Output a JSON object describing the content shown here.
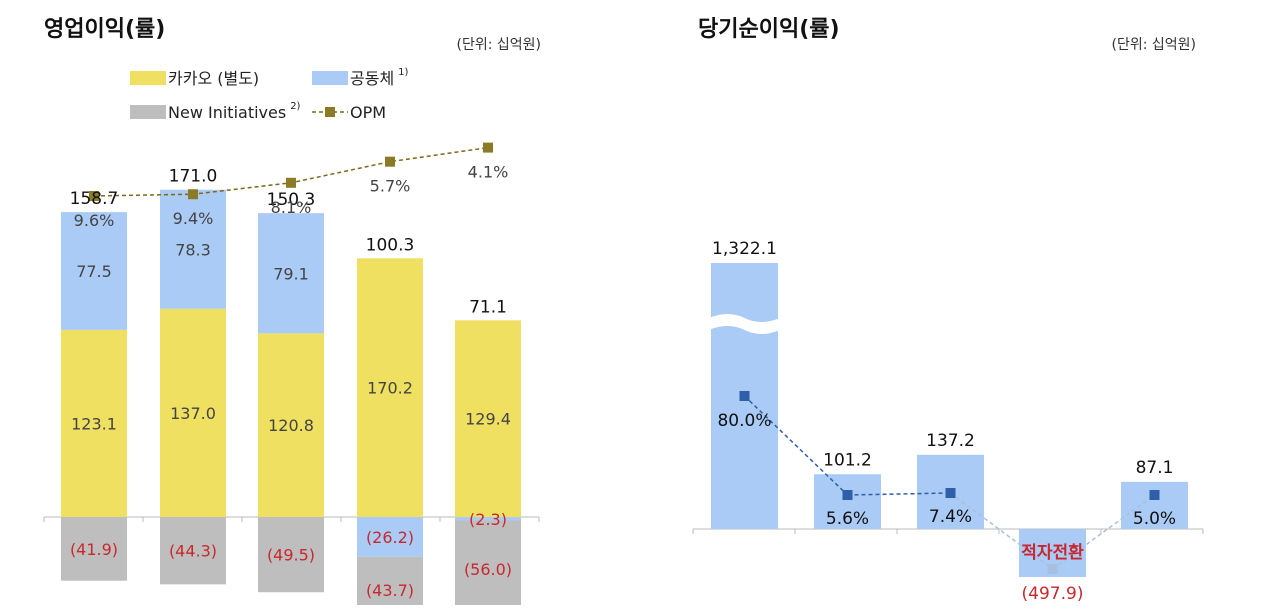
{
  "colors": {
    "kakao": "#EFE062",
    "community": "#A9CBF6",
    "new_init": "#BEBEBE",
    "opm_line": "#7A6A18",
    "opm_marker": "#8C7B26",
    "np_bar": "#A9CBF6",
    "np_line": "#2F5FA8",
    "neg_text": "#C8282D",
    "dark_text": "#111111",
    "mid_text": "#444444",
    "axis": "#BBBBBB"
  },
  "chart_data": [
    {
      "type": "bar",
      "subtype": "stacked-bar-with-line",
      "title": "영업이익(률)",
      "unit_note": "(단위: 십억원)",
      "legend": [
        {
          "label": "카카오 (별도)",
          "sup": "",
          "swatch": "kakao"
        },
        {
          "label": "공동체",
          "sup": "1)",
          "swatch": "community"
        },
        {
          "label": "New Initiatives",
          "sup": "2)",
          "swatch": "new_init"
        },
        {
          "label": "OPM",
          "sup": "",
          "swatch": "line"
        }
      ],
      "n_categories": 5,
      "series": [
        {
          "name": "카카오 (별도)",
          "values": [
            123.1,
            137.0,
            120.8,
            170.2,
            129.4
          ],
          "labels": [
            "123.1",
            "137.0",
            "120.8",
            "170.2",
            "129.4"
          ]
        },
        {
          "name": "공동체",
          "values": [
            77.5,
            78.3,
            79.1,
            -26.2,
            -2.3
          ],
          "labels": [
            "77.5",
            "78.3",
            "79.1",
            "(26.2)",
            "(2.3)"
          ]
        },
        {
          "name": "New Initiatives",
          "values": [
            -41.9,
            -44.3,
            -49.5,
            -43.7,
            -56.0
          ],
          "labels": [
            "(41.9)",
            "(44.3)",
            "(49.5)",
            "(43.7)",
            "(56.0)"
          ]
        }
      ],
      "totals": [
        158.7,
        171.0,
        150.3,
        100.3,
        71.1
      ],
      "total_labels": [
        "158.7",
        "171.0",
        "150.3",
        "100.3",
        "71.1"
      ],
      "opm": [
        9.6,
        9.4,
        8.1,
        5.7,
        4.1
      ],
      "opm_labels": [
        "9.6%",
        "9.4%",
        "8.1%",
        "5.7%",
        "4.1%"
      ]
    },
    {
      "type": "bar",
      "subtype": "bar-with-line",
      "title": "당기순이익(률)",
      "unit_note": "(단위: 십억원)",
      "n_categories": 5,
      "values": [
        1322.1,
        101.2,
        137.2,
        -497.9,
        87.1
      ],
      "value_labels": [
        "1,322.1",
        "101.2",
        "137.2",
        "(497.9)",
        "87.1"
      ],
      "axis_break": true,
      "margin": [
        80.0,
        5.6,
        7.4,
        null,
        5.0
      ],
      "margin_labels": [
        "80.0%",
        "5.6%",
        "7.4%",
        "적자전환",
        "5.0%"
      ]
    }
  ]
}
